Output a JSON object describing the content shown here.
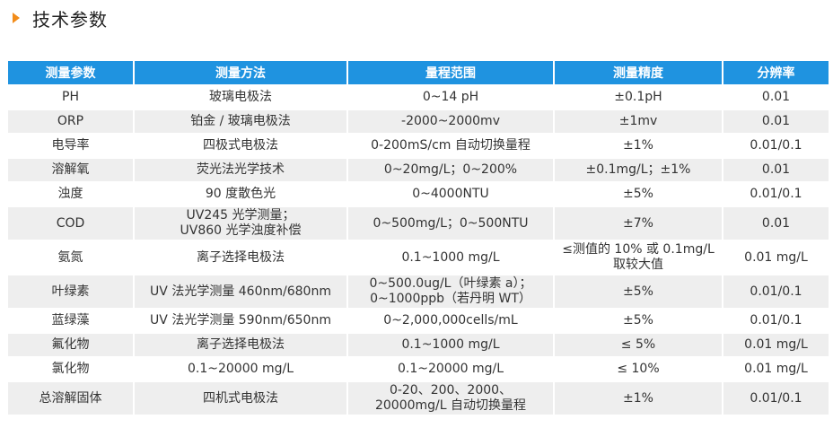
{
  "heading": {
    "title": "技术参数",
    "accent": "#f28c1a"
  },
  "table": {
    "header_color": "#1f93e0",
    "headers": [
      "测量参数",
      "测量方法",
      "量程范围",
      "测量精度",
      "分辨率"
    ],
    "rows": [
      [
        "PH",
        "玻璃电极法",
        "0~14 pH",
        "±0.1pH",
        "0.01"
      ],
      [
        "ORP",
        "铂金 / 玻璃电极法",
        "-2000~2000mv",
        "±1mv",
        "0.01"
      ],
      [
        "电导率",
        "四极式电极法",
        "0-200mS/cm 自动切换量程",
        "±1%",
        "0.01/0.1"
      ],
      [
        "溶解氧",
        "荧光法光学技术",
        "0~20mg/L；0~200%",
        "±0.1mg/L；±1%",
        "0.01"
      ],
      [
        "浊度",
        "90 度散色光",
        "0~4000NTU",
        "±5%",
        "0.01/0.1"
      ],
      [
        "COD",
        "UV245 光学测量；\nUV860 光学浊度补偿",
        "0~500mg/L；0~500NTU",
        "±7%",
        "0.01"
      ],
      [
        "氨氮",
        "离子选择电极法",
        "0.1~1000 mg/L",
        "≤测值的 10% 或 0.1mg/L\n取较大值",
        "0.01 mg/L"
      ],
      [
        "叶绿素",
        "UV 法光学测量 460nm/680nm",
        "0~500.0ug/L（叶绿素 a）；\n0~1000ppb（若丹明 WT）",
        "±5%",
        "0.01/0.1"
      ],
      [
        "蓝绿藻",
        "UV 法光学测量 590nm/650nm",
        "0~2,000,000cells/mL",
        "±5%",
        "0.01/0.1"
      ],
      [
        "氟化物",
        "离子选择电极法",
        "0.1~1000 mg/L",
        "≤ 5%",
        "0.01 mg/L"
      ],
      [
        "氯化物",
        "0.1~20000 mg/L",
        "0.1~20000 mg/L",
        "≤ 10%",
        "0.01 mg/L"
      ],
      [
        "总溶解固体",
        "四机式电极法",
        "0-20、200、2000、\n20000mg/L 自动切换量程",
        "±1%",
        "0.01/0.1"
      ]
    ]
  }
}
